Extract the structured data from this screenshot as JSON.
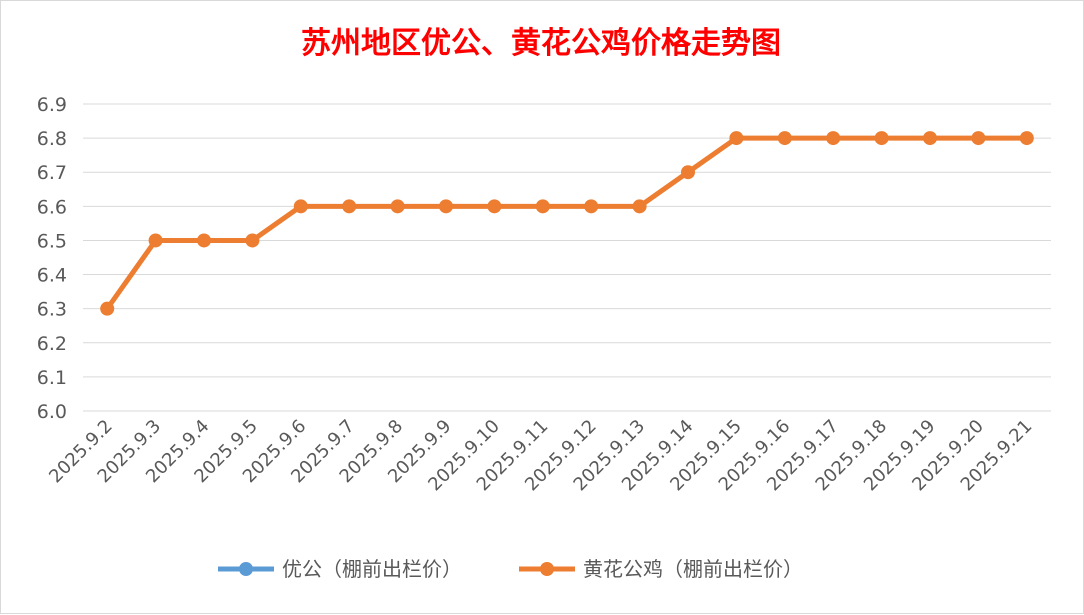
{
  "chart_data": {
    "type": "line",
    "title": "苏州地区优公、黄花公鸡价格走势图",
    "categories": [
      "2025.9.2",
      "2025.9.3",
      "2025.9.4",
      "2025.9.5",
      "2025.9.6",
      "2025.9.7",
      "2025.9.8",
      "2025.9.9",
      "2025.9.10",
      "2025.9.11",
      "2025.9.12",
      "2025.9.13",
      "2025.9.14",
      "2025.9.15",
      "2025.9.16",
      "2025.9.17",
      "2025.9.18",
      "2025.9.19",
      "2025.9.20",
      "2025.9.21"
    ],
    "ylim": [
      6.0,
      6.9
    ],
    "yticks": [
      "6.9",
      "6.8",
      "6.7",
      "6.6",
      "6.5",
      "6.4",
      "6.3",
      "6.2",
      "6.1",
      "6.0"
    ],
    "grid": true,
    "legend_position": "bottom",
    "series": [
      {
        "name": "优公（棚前出栏价）",
        "color": "#5b9bd5",
        "values": [
          null,
          null,
          null,
          null,
          null,
          null,
          null,
          null,
          null,
          null,
          null,
          null,
          null,
          null,
          null,
          null,
          null,
          null,
          null,
          null
        ]
      },
      {
        "name": "黄花公鸡（棚前出栏价）",
        "color": "#ed7d31",
        "values": [
          6.3,
          6.5,
          6.5,
          6.5,
          6.6,
          6.6,
          6.6,
          6.6,
          6.6,
          6.6,
          6.6,
          6.6,
          6.7,
          6.8,
          6.8,
          6.8,
          6.8,
          6.8,
          6.8,
          6.8
        ]
      }
    ],
    "title_color": "#ff0000"
  }
}
